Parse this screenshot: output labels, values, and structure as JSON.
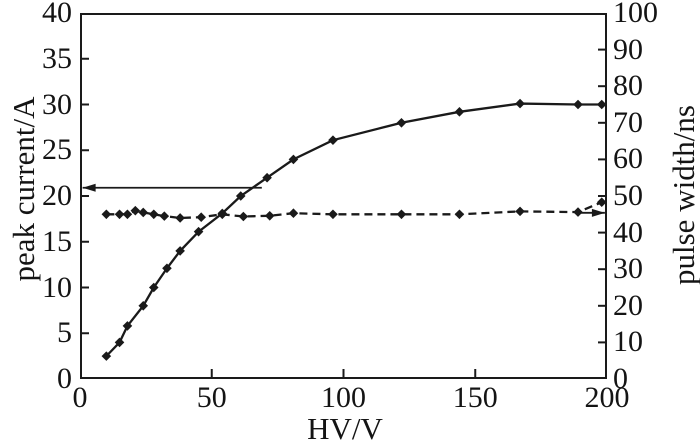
{
  "chart_data": {
    "type": "line",
    "title": "",
    "xlabel": "HV/V",
    "ylabel_left": "peak current/A",
    "ylabel_right": "pulse width/ns",
    "xlim": [
      0,
      200
    ],
    "ylim_left": [
      0,
      40
    ],
    "ylim_right": [
      0,
      100
    ],
    "x_ticks": [
      0,
      50,
      100,
      150,
      200
    ],
    "y_ticks_left": [
      0,
      5,
      10,
      15,
      20,
      25,
      30,
      35,
      40
    ],
    "y_ticks_right": [
      0,
      10,
      20,
      30,
      40,
      50,
      60,
      70,
      80,
      90,
      100
    ],
    "grid": false,
    "legend": "none",
    "frame_color": "#1a1a1a",
    "series": [
      {
        "name": "peak current",
        "axis": "left",
        "line_style": "solid",
        "marker": "diamond",
        "color": "#1a1a1a",
        "x": [
          10,
          15,
          18,
          24,
          28,
          33,
          38,
          45,
          54,
          61,
          71,
          81,
          96,
          122,
          144,
          167,
          189,
          198
        ],
        "y": [
          2.5,
          4.0,
          5.8,
          8.0,
          10.0,
          12.1,
          14.0,
          16.1,
          18.1,
          20.0,
          22.0,
          24.0,
          26.1,
          28.0,
          29.2,
          30.1,
          30.0,
          30.0
        ]
      },
      {
        "name": "pulse width",
        "axis": "right",
        "line_style": "dashed",
        "marker": "diamond",
        "color": "#1a1a1a",
        "x": [
          10,
          15,
          18,
          21,
          24,
          28,
          32,
          38,
          46,
          54,
          62,
          72,
          81,
          96,
          122,
          144,
          167,
          189,
          198
        ],
        "y": [
          45,
          45,
          45,
          46,
          45.5,
          45,
          44.5,
          44,
          44.2,
          45,
          44.4,
          44.6,
          45.3,
          45,
          45,
          45,
          45.8,
          45.6,
          48.3
        ]
      }
    ],
    "annotations": [
      {
        "shape": "arrow",
        "meaning": "solid curve reads on left axis",
        "axis": "left",
        "y": 20.9,
        "x_from": 69,
        "x_to": 1,
        "head": "left"
      },
      {
        "shape": "arrow",
        "meaning": "dashed curve reads on right axis",
        "axis": "right",
        "y": 45.4,
        "x_from": 189,
        "x_to": 199.2,
        "head": "right"
      }
    ]
  }
}
